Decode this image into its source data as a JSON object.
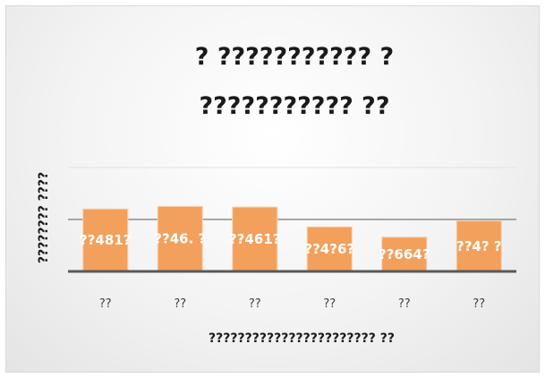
{
  "chart_data": {
    "type": "bar",
    "title_lines": [
      "? ??????????? ?",
      "???????????  ??"
    ],
    "xlabel": "??????????????????????? ??",
    "ylabel": "???????? ????",
    "categories": [
      "??",
      "??",
      "??",
      "??",
      "??",
      "??"
    ],
    "values": [
      481,
      501,
      496,
      343,
      264,
      389
    ],
    "data_labels": [
      "??481?",
      "??46. ?",
      "??461?",
      "??4?6?",
      "??664?",
      "??4? ?"
    ],
    "ylim": [
      0,
      800
    ],
    "gridlines": [
      400,
      800
    ],
    "grid": true,
    "legend": false,
    "bar_color": "#f2a05c",
    "bar_border_color": "#f8d5b4"
  }
}
